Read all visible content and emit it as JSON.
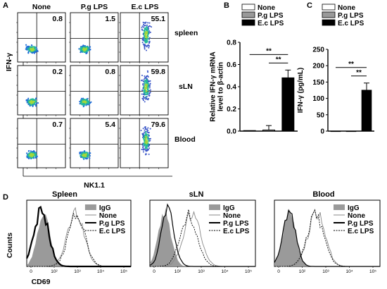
{
  "panels": {
    "A": {
      "label": "A",
      "column_headers": [
        "None",
        "P.g LPS",
        "E.c LPS"
      ],
      "row_labels": [
        "spleen",
        "sLN",
        "Blood"
      ],
      "ylabel": "IFN-γ",
      "xlabel": "NK1.1",
      "quadrant_values": [
        [
          "0.8",
          "1.5",
          "55.1"
        ],
        [
          "0.2",
          "0.8",
          "59.8"
        ],
        [
          "0.7",
          "5.4",
          "79.6"
        ]
      ],
      "density_colors": [
        "#1f6dd8",
        "#22b89a",
        "#a4d83b",
        "#3a56c8"
      ]
    },
    "B": {
      "label": "B"
    },
    "C": {
      "label": "C"
    },
    "D": {
      "label": "D",
      "histogram_titles": [
        "Spleen",
        "sLN",
        "Blood"
      ],
      "ylabel": "Counts",
      "xlabel": "CD69",
      "tick_labels": [
        "0",
        "10²",
        "10³",
        "10⁴",
        "10⁵"
      ],
      "legend": [
        "IgG",
        "None",
        "P.g LPS",
        "E.c LPS"
      ],
      "colors": {
        "IgG": "#9a9a9a",
        "None": "#888888",
        "P.g LPS": "#000000",
        "E.c LPS": "#000000"
      }
    }
  },
  "chart_data": [
    {
      "type": "bar",
      "panel": "B",
      "categories": [
        "None",
        "P.g LPS",
        "E.c LPS"
      ],
      "series": [
        {
          "values": [
            0.005,
            0.01,
            0.48
          ],
          "errors": [
            0.0,
            0.04,
            0.07
          ]
        }
      ],
      "colors": [
        "#ffffff",
        "#999999",
        "#000000"
      ],
      "ylabel": "Relative IFN-γ mRNA level to β-actin",
      "ylabel_lines": [
        "Relative IFN-γ mRNA",
        "level to β-actin"
      ],
      "ylim": [
        0,
        0.8
      ],
      "yticks": [
        "0.0",
        "0.2",
        "0.4",
        "0.6",
        "0.8"
      ],
      "legend": [
        "None",
        "P.g LPS",
        "E.c LPS"
      ],
      "significance": [
        "**",
        "**"
      ]
    },
    {
      "type": "bar",
      "panel": "C",
      "categories": [
        "None",
        "P.g LPS",
        "E.c LPS"
      ],
      "series": [
        {
          "values": [
            0,
            0,
            125
          ],
          "errors": [
            0,
            0,
            22
          ]
        }
      ],
      "colors": [
        "#ffffff",
        "#999999",
        "#000000"
      ],
      "ylabel": "IFN-γ (pg/mL)",
      "ylim": [
        0,
        250
      ],
      "yticks": [
        "0",
        "50",
        "100",
        "150",
        "200",
        "250"
      ],
      "legend": [
        "None",
        "P.g LPS",
        "E.c LPS"
      ],
      "significance": [
        "**",
        "**"
      ]
    }
  ]
}
